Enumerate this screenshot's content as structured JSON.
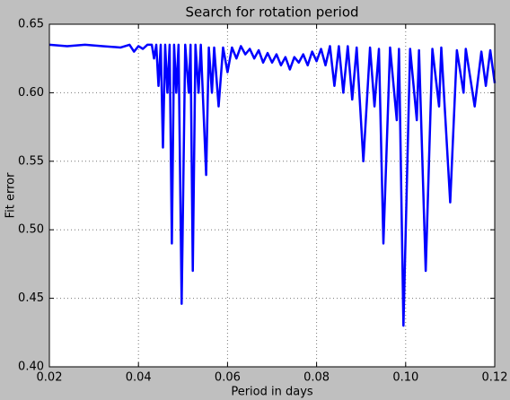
{
  "chart_data": {
    "type": "line",
    "title": "Search for rotation period",
    "x_label": "Period in days",
    "y_label": "Fit error",
    "x": [
      0.02,
      0.024,
      0.028,
      0.032,
      0.036,
      0.038,
      0.039,
      0.04,
      0.041,
      0.042,
      0.043,
      0.0435,
      0.044,
      0.0445,
      0.045,
      0.0455,
      0.046,
      0.0465,
      0.047,
      0.0475,
      0.048,
      0.0485,
      0.049,
      0.0497,
      0.0505,
      0.0513,
      0.0517,
      0.0522,
      0.0528,
      0.0535,
      0.054,
      0.0552,
      0.0558,
      0.0565,
      0.057,
      0.058,
      0.059,
      0.06,
      0.061,
      0.062,
      0.063,
      0.064,
      0.065,
      0.066,
      0.067,
      0.068,
      0.069,
      0.07,
      0.071,
      0.072,
      0.073,
      0.074,
      0.075,
      0.076,
      0.077,
      0.078,
      0.079,
      0.08,
      0.081,
      0.082,
      0.083,
      0.084,
      0.085,
      0.086,
      0.087,
      0.088,
      0.089,
      0.0905,
      0.092,
      0.093,
      0.094,
      0.095,
      0.0965,
      0.098,
      0.0985,
      0.0995,
      0.101,
      0.1025,
      0.103,
      0.1045,
      0.106,
      0.1075,
      0.108,
      0.11,
      0.1115,
      0.113,
      0.1135,
      0.1155,
      0.117,
      0.118,
      0.119,
      0.12
    ],
    "series": [
      {
        "color": "#0000ff",
        "values": [
          0.635,
          0.634,
          0.635,
          0.634,
          0.633,
          0.635,
          0.63,
          0.634,
          0.632,
          0.635,
          0.635,
          0.625,
          0.635,
          0.605,
          0.635,
          0.56,
          0.635,
          0.6,
          0.635,
          0.49,
          0.635,
          0.6,
          0.635,
          0.446,
          0.635,
          0.6,
          0.635,
          0.47,
          0.635,
          0.6,
          0.635,
          0.54,
          0.633,
          0.6,
          0.633,
          0.59,
          0.633,
          0.615,
          0.633,
          0.625,
          0.634,
          0.628,
          0.632,
          0.625,
          0.631,
          0.622,
          0.629,
          0.622,
          0.628,
          0.62,
          0.626,
          0.617,
          0.626,
          0.622,
          0.628,
          0.62,
          0.63,
          0.623,
          0.632,
          0.62,
          0.634,
          0.605,
          0.634,
          0.6,
          0.634,
          0.595,
          0.633,
          0.55,
          0.633,
          0.59,
          0.632,
          0.49,
          0.633,
          0.58,
          0.632,
          0.43,
          0.632,
          0.58,
          0.631,
          0.47,
          0.632,
          0.59,
          0.633,
          0.52,
          0.631,
          0.6,
          0.632,
          0.59,
          0.63,
          0.605,
          0.631,
          0.607
        ]
      }
    ],
    "xlim": [
      0.02,
      0.12
    ],
    "ylim": [
      0.4,
      0.65
    ],
    "xticks": [
      0.02,
      0.04,
      0.06,
      0.08,
      {
        "value": 0.1,
        "label": "0.10"
      },
      0.12
    ],
    "yticks": [
      {
        "value": 0.4,
        "label": "0.40"
      },
      0.45,
      {
        "value": 0.5,
        "label": "0.50"
      },
      0.55,
      {
        "value": 0.6,
        "label": "0.60"
      },
      0.65
    ],
    "grid": true
  }
}
